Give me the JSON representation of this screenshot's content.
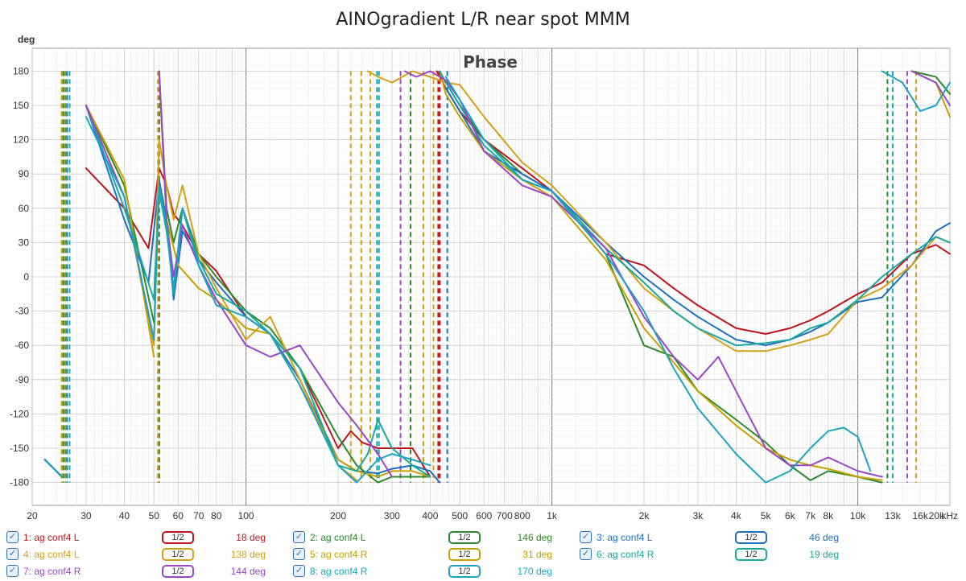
{
  "chart_data": {
    "type": "line",
    "title": "AINOgradient L/R near spot MMM",
    "subtitle": "Phase",
    "ylabel": "deg",
    "xunit": "kHz",
    "xscale": "log",
    "xlim": [
      20,
      20000
    ],
    "ylim": [
      -200,
      200
    ],
    "yticks": [
      180,
      150,
      120,
      90,
      60,
      30,
      0,
      -30,
      -60,
      -90,
      -120,
      -150,
      -180
    ],
    "yticklabels": [
      "180",
      "150",
      "120",
      "90",
      "60",
      "30",
      "0",
      "-30",
      "-60",
      "-90",
      "-120",
      "-150",
      "-180"
    ],
    "xticks": [
      20,
      30,
      40,
      50,
      60,
      70,
      80,
      100,
      200,
      300,
      400,
      500,
      600,
      700,
      800,
      1000,
      2000,
      3000,
      4000,
      5000,
      6000,
      7000,
      8000,
      10000,
      13000,
      16000,
      20000
    ],
    "xticklabels": [
      "20",
      "30",
      "40",
      "50",
      "60",
      "70",
      "80",
      "100",
      "200",
      "300",
      "400",
      "500",
      "600",
      "700",
      "800",
      "1k",
      "2k",
      "3k",
      "4k",
      "5k",
      "6k",
      "7k",
      "8k",
      "10k",
      "13k",
      "16k",
      "20k"
    ],
    "grid": true,
    "series": [
      {
        "name": "1: ag conf4 L",
        "color": "#c0141c",
        "smoothing": "1/2",
        "offset": "18 deg",
        "x": [
          22,
          25,
          30,
          40,
          48,
          52,
          55,
          58,
          62,
          70,
          80,
          100,
          120,
          150,
          200,
          220,
          240,
          270,
          300,
          350,
          400,
          420,
          430,
          450,
          500,
          600,
          800,
          1000,
          1500,
          2000,
          2500,
          3000,
          4000,
          5000,
          6000,
          7000,
          8000,
          10000,
          12000,
          15000,
          18000,
          20000
        ],
        "y": [
          -160,
          -175,
          95,
          60,
          25,
          95,
          80,
          55,
          45,
          20,
          5,
          -35,
          -50,
          -80,
          -150,
          -135,
          -145,
          -150,
          -150,
          -150,
          -175,
          180,
          175,
          165,
          145,
          120,
          95,
          75,
          20,
          10,
          -10,
          -25,
          -45,
          -50,
          -45,
          -38,
          -30,
          -15,
          -5,
          20,
          28,
          20
        ]
      },
      {
        "name": "2: ag conf4 L",
        "color": "#2b8a2b",
        "smoothing": "1/2",
        "offset": "146 deg",
        "x": [
          22,
          25,
          30,
          40,
          50,
          52,
          55,
          58,
          62,
          70,
          80,
          100,
          120,
          150,
          200,
          230,
          270,
          300,
          350,
          400,
          430,
          450,
          500,
          600,
          800,
          1000,
          1500,
          2000,
          2500,
          3000,
          4000,
          5000,
          6000,
          7000,
          8000,
          10000,
          12000,
          15000,
          18000,
          20000
        ],
        "y": [
          -160,
          -175,
          150,
          80,
          -40,
          180,
          60,
          30,
          60,
          20,
          0,
          -30,
          -45,
          -80,
          -140,
          -165,
          -180,
          -175,
          -175,
          -175,
          180,
          170,
          150,
          120,
          90,
          75,
          20,
          -60,
          -70,
          -100,
          -125,
          -145,
          -165,
          -178,
          -170,
          -175,
          -180,
          180,
          175,
          160
        ]
      },
      {
        "name": "3: ag conf4 L",
        "color": "#1e6fc2",
        "smoothing": "1/2",
        "offset": "46 deg",
        "x": [
          22,
          25,
          30,
          40,
          48,
          52,
          55,
          58,
          62,
          70,
          80,
          100,
          120,
          150,
          200,
          230,
          270,
          300,
          350,
          400,
          430,
          450,
          500,
          600,
          800,
          1000,
          1500,
          2000,
          2500,
          3000,
          4000,
          5000,
          6000,
          7000,
          8000,
          10000,
          12000,
          15000,
          18000,
          20000
        ],
        "y": [
          -160,
          -175,
          150,
          50,
          -5,
          85,
          50,
          -20,
          40,
          15,
          -5,
          -35,
          -50,
          -90,
          -160,
          -170,
          -172,
          -168,
          -165,
          -170,
          -180,
          165,
          145,
          110,
          90,
          75,
          30,
          0,
          -20,
          -35,
          -55,
          -60,
          -55,
          -48,
          -40,
          -22,
          -18,
          10,
          40,
          47
        ]
      },
      {
        "name": "4: ag conf4 L",
        "color": "#d4a017",
        "smoothing": "1/2",
        "offset": "138 deg",
        "x": [
          22,
          25,
          30,
          40,
          50,
          52,
          55,
          58,
          62,
          70,
          80,
          100,
          120,
          150,
          200,
          230,
          250,
          270,
          300,
          350,
          400,
          450,
          500,
          600,
          800,
          1000,
          1500,
          2000,
          2500,
          3000,
          4000,
          5000,
          6000,
          7000,
          8000,
          10000,
          12000,
          15000,
          18000,
          20000
        ],
        "y": [
          -160,
          -175,
          150,
          70,
          -60,
          120,
          80,
          50,
          80,
          20,
          -10,
          -55,
          -35,
          -90,
          -165,
          -178,
          180,
          175,
          170,
          180,
          175,
          170,
          168,
          140,
          100,
          80,
          30,
          -10,
          -30,
          -45,
          -65,
          -65,
          -60,
          -55,
          -50,
          -20,
          -10,
          10,
          35,
          30
        ]
      },
      {
        "name": "5: ag conf4 R",
        "color": "#c8a000",
        "smoothing": "1/2",
        "offset": "31 deg",
        "x": [
          22,
          25,
          30,
          40,
          50,
          52,
          55,
          60,
          70,
          80,
          100,
          120,
          150,
          200,
          230,
          270,
          300,
          350,
          400,
          430,
          450,
          500,
          600,
          800,
          1000,
          1500,
          2000,
          2500,
          3000,
          4000,
          5000,
          6000,
          7000,
          8000,
          10000,
          12000,
          15000,
          18000,
          20000
        ],
        "y": [
          -160,
          -175,
          150,
          85,
          -70,
          180,
          50,
          10,
          -10,
          -20,
          -45,
          -50,
          -95,
          -160,
          -170,
          -175,
          -170,
          -170,
          -175,
          180,
          160,
          140,
          110,
          85,
          70,
          15,
          -45,
          -75,
          -100,
          -130,
          -150,
          -160,
          -165,
          -168,
          -175,
          -178,
          180,
          170,
          140
        ]
      },
      {
        "name": "6: ag conf4 R",
        "color": "#17a89e",
        "smoothing": "1/2",
        "offset": "19 deg",
        "x": [
          22,
          25,
          30,
          40,
          50,
          52,
          55,
          58,
          62,
          70,
          80,
          100,
          120,
          150,
          200,
          230,
          250,
          270,
          300,
          350,
          400,
          430,
          450,
          500,
          600,
          800,
          1000,
          1500,
          2000,
          2500,
          3000,
          4000,
          5000,
          6000,
          7000,
          8000,
          10000,
          12000,
          15000,
          18000,
          20000
        ],
        "y": [
          -160,
          -175,
          150,
          60,
          -20,
          75,
          40,
          -10,
          60,
          15,
          -15,
          -30,
          -50,
          -80,
          -165,
          -170,
          -155,
          -125,
          -150,
          -165,
          -175,
          180,
          170,
          150,
          115,
          85,
          75,
          25,
          -5,
          -30,
          -45,
          -60,
          -58,
          -55,
          -45,
          -40,
          -20,
          0,
          20,
          35,
          30
        ]
      },
      {
        "name": "7: ag conf4 R",
        "color": "#9b45c7",
        "smoothing": "1/2",
        "offset": "144 deg",
        "x": [
          22,
          25,
          30,
          40,
          50,
          52,
          55,
          58,
          62,
          70,
          80,
          100,
          120,
          150,
          200,
          230,
          270,
          300,
          330,
          360,
          400,
          450,
          500,
          600,
          800,
          1000,
          1500,
          2000,
          2500,
          3000,
          3500,
          4000,
          5000,
          6000,
          7000,
          8000,
          10000,
          12000,
          15000,
          18000,
          20000
        ],
        "y": [
          -160,
          -175,
          150,
          70,
          -55,
          180,
          50,
          0,
          45,
          10,
          -20,
          -60,
          -70,
          -60,
          -110,
          -130,
          -155,
          -175,
          180,
          175,
          180,
          172,
          155,
          110,
          80,
          70,
          25,
          -35,
          -70,
          -90,
          -70,
          -100,
          -150,
          -165,
          -165,
          -158,
          -170,
          -175,
          180,
          170,
          150
        ]
      },
      {
        "name": "8: ag conf4 R",
        "color": "#1ba3c2",
        "smoothing": "1/2",
        "offset": "170 deg",
        "x": [
          22,
          25,
          30,
          40,
          50,
          52,
          55,
          58,
          62,
          70,
          80,
          100,
          120,
          150,
          200,
          230,
          270,
          300,
          350,
          400,
          450,
          500,
          600,
          800,
          1000,
          1500,
          2000,
          2500,
          3000,
          4000,
          5000,
          6000,
          7000,
          8000,
          9000,
          10000,
          11000,
          12000,
          14000,
          16000,
          18000,
          20000
        ],
        "y": [
          -160,
          -175,
          140,
          70,
          -55,
          80,
          45,
          -15,
          60,
          10,
          -25,
          -35,
          -50,
          -95,
          -165,
          -180,
          -160,
          -155,
          -160,
          -165,
          175,
          155,
          120,
          85,
          75,
          20,
          -30,
          -80,
          -115,
          -155,
          -180,
          -170,
          -150,
          -135,
          -132,
          -140,
          -170,
          180,
          170,
          145,
          150,
          170
        ]
      }
    ],
    "markers": [
      {
        "color": "#c0141c",
        "x": [
          25,
          52,
          425,
          430
        ]
      },
      {
        "color": "#2b8a2b",
        "x": [
          25.3,
          52,
          345,
          12500
        ]
      },
      {
        "color": "#1e6fc2",
        "x": [
          26,
          455
        ]
      },
      {
        "color": "#d4a017",
        "x": [
          25,
          51.5,
          220,
          255,
          410,
          15500
        ]
      },
      {
        "color": "#c8a000",
        "x": [
          25.6,
          238,
          380
        ]
      },
      {
        "color": "#17a89e",
        "x": [
          26.5,
          268
        ]
      },
      {
        "color": "#9b45c7",
        "x": [
          320,
          14500
        ]
      },
      {
        "color": "#1ba3c2",
        "x": [
          25.8,
          272,
          13000
        ]
      }
    ]
  },
  "legend": {
    "smoothing_label": "1/2",
    "items": [
      {
        "label": "1: ag conf4 L",
        "offset": "18 deg",
        "color": "#c0141c"
      },
      {
        "label": "2: ag conf4 L",
        "offset": "146 deg",
        "color": "#2b8a2b"
      },
      {
        "label": "3: ag conf4 L",
        "offset": "46 deg",
        "color": "#1e6fc2"
      },
      {
        "label": "4: ag conf4 L",
        "offset": "138 deg",
        "color": "#d4a017"
      },
      {
        "label": "5: ag conf4 R",
        "offset": "31 deg",
        "color": "#c8a000"
      },
      {
        "label": "6: ag conf4 R",
        "offset": "19 deg",
        "color": "#17a89e"
      },
      {
        "label": "7: ag conf4 R",
        "offset": "144 deg",
        "color": "#9b45c7"
      },
      {
        "label": "8: ag conf4 R",
        "offset": "170 deg",
        "color": "#1ba3c2"
      }
    ]
  }
}
